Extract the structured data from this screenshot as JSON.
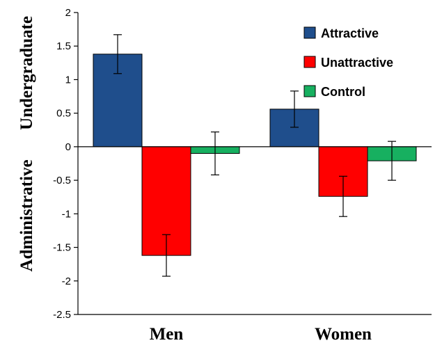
{
  "chart_data": {
    "type": "bar",
    "categories": [
      "Men",
      "Women"
    ],
    "series": [
      {
        "name": "Attractive",
        "color": "#1f4e8c",
        "values": [
          1.38,
          0.56
        ],
        "errors": [
          0.29,
          0.27
        ]
      },
      {
        "name": "Unattractive",
        "color": "#ff0000",
        "values": [
          -1.62,
          -0.74
        ],
        "errors": [
          0.31,
          0.3
        ]
      },
      {
        "name": "Control",
        "color": "#17b060",
        "values": [
          -0.1,
          -0.21
        ],
        "errors": [
          0.32,
          0.29
        ]
      }
    ],
    "ylim": [
      -2.5,
      2
    ],
    "yticks": [
      2,
      1.5,
      1,
      0.5,
      0,
      -0.5,
      -1,
      -1.5,
      -2,
      -2.5
    ],
    "ytick_labels": [
      "2",
      "1.5",
      "1",
      "0.5",
      "0",
      "-0.5",
      "-1",
      "-1.5",
      "-2",
      "-2.5"
    ],
    "ylabel_top": "Undergraduate",
    "ylabel_bottom": "Administrative",
    "legend_position": "top-right",
    "grid": false
  }
}
